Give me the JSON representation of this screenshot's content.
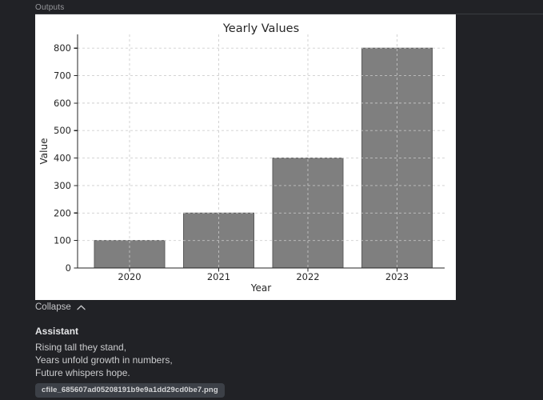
{
  "outputs_panel": {
    "header_label": "Outputs",
    "collapse_label": "Collapse"
  },
  "assistant_message": {
    "role_label": "Assistant",
    "lines": [
      "Rising tall they stand,",
      "Years unfold growth in numbers,",
      "Future whispers hope."
    ],
    "filename": "cfile_685607ad05208191b9e9a1dd29cd0be7.png"
  },
  "chart_data": {
    "type": "bar",
    "title": "Yearly Values",
    "xlabel": "Year",
    "ylabel": "Value",
    "categories": [
      "2020",
      "2021",
      "2022",
      "2023"
    ],
    "values": [
      100,
      200,
      400,
      800
    ],
    "yticks": [
      0,
      100,
      200,
      300,
      400,
      500,
      600,
      700,
      800
    ],
    "ylim": [
      0,
      850
    ],
    "grid": true,
    "grid_style": "dashed",
    "grid_above_bars": true,
    "legend": false,
    "colors": {
      "bar_fill": "#7f7f7f",
      "bar_edge": "#5c5c5c",
      "grid": "#c9c9c9",
      "text": "#262626",
      "spine": "#262626",
      "background": "#ffffff"
    }
  }
}
